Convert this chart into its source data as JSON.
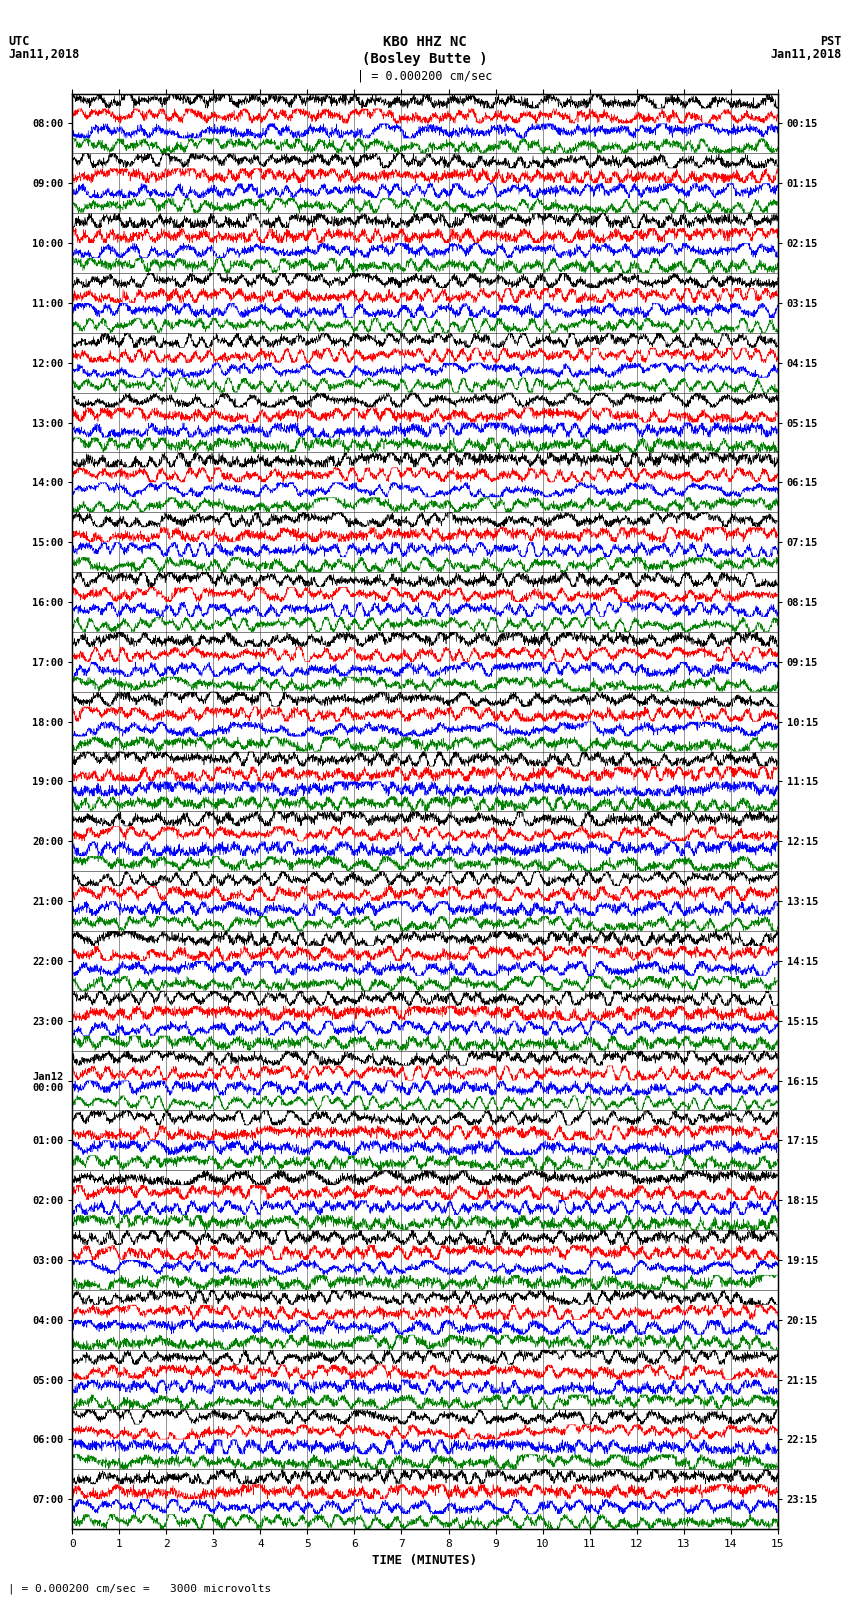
{
  "title_line1": "KBO HHZ NC",
  "title_line2": "(Bosley Butte )",
  "scale_label": "| = 0.000200 cm/sec",
  "utc_label": "UTC\nJan11,2018",
  "pst_label": "PST\nJan11,2018",
  "bottom_label": "| = 0.000200 cm/sec =   3000 microvolts",
  "xlabel": "TIME (MINUTES)",
  "left_times": [
    "08:00",
    "09:00",
    "10:00",
    "11:00",
    "12:00",
    "13:00",
    "14:00",
    "15:00",
    "16:00",
    "17:00",
    "18:00",
    "19:00",
    "20:00",
    "21:00",
    "22:00",
    "23:00",
    "Jan12\n00:00",
    "01:00",
    "02:00",
    "03:00",
    "04:00",
    "05:00",
    "06:00",
    "07:00"
  ],
  "right_times": [
    "00:15",
    "01:15",
    "02:15",
    "03:15",
    "04:15",
    "05:15",
    "06:15",
    "07:15",
    "08:15",
    "09:15",
    "10:15",
    "11:15",
    "12:15",
    "13:15",
    "14:15",
    "15:15",
    "16:15",
    "17:15",
    "18:15",
    "19:15",
    "20:15",
    "21:15",
    "22:15",
    "23:15"
  ],
  "num_rows": 24,
  "num_traces_per_row": 4,
  "minutes_per_row": 15,
  "colors": [
    "black",
    "red",
    "blue",
    "green"
  ],
  "bg_color": "white",
  "plot_bg": "white",
  "amplitude": 0.42,
  "figsize": [
    8.5,
    16.13
  ],
  "dpi": 100
}
